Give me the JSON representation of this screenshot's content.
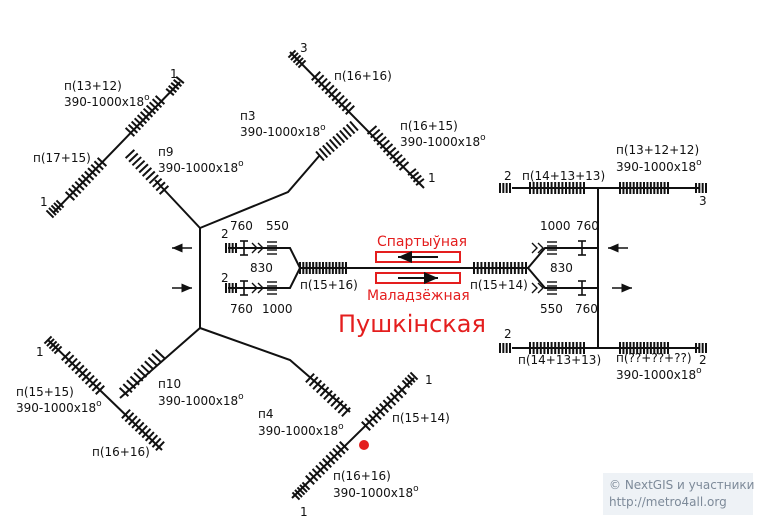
{
  "station": {
    "name": "Пушкінская",
    "platform_top": "Спартыўная",
    "platform_bottom": "Маладзёжная"
  },
  "credit": {
    "line1": "© NextGIS и участники",
    "line2": "http://metro4all.org"
  },
  "exits": {
    "nw": {
      "name": "п9",
      "param": "390-1000x18",
      "deg": "o",
      "a1_name": "п(13+12)",
      "a1_param": "390-1000x18",
      "a1_deg": "o",
      "a2_name": "п(17+15)",
      "end1": "1",
      "end2": "1"
    },
    "n": {
      "name": "п3",
      "param": "390-1000x18",
      "deg": "o",
      "a1_name": "п(16+16)",
      "a2_name": "п(16+15)",
      "a2_param": "390-1000x18",
      "a2_deg": "o",
      "end1": "3",
      "end2": "1"
    },
    "sw": {
      "name": "п10",
      "param": "390-1000x18",
      "deg": "o",
      "a1_name": "п(15+15)",
      "a1_param": "390-1000x18",
      "a1_deg": "o",
      "a2_name": "п(16+16)",
      "end1": "1"
    },
    "s": {
      "name": "п4",
      "param": "390-1000x18",
      "deg": "o",
      "a1_name": "п(15+14)",
      "a2_name": "п(16+16)",
      "a2_param": "390-1000x18",
      "a2_deg": "o",
      "end1": "1",
      "end2": "1"
    },
    "ne": {
      "name": "п(14+13+13)",
      "a1_name": "п(13+12+12)",
      "a1_param": "390-1000x18",
      "a1_deg": "o",
      "end1": "2",
      "end2": "3"
    },
    "se": {
      "name": "п(14+13+13)",
      "a1_name": "п(??+??+??)",
      "a1_param": "390-1000x18",
      "a1_deg": "o",
      "end1": "2",
      "end2": "2"
    }
  },
  "west_vestibule": {
    "stair": "п(15+16)",
    "top_num": "2",
    "top_w1": "760",
    "top_w2": "550",
    "mid": "830",
    "bot_num": "2",
    "bot_w1": "760",
    "bot_w2": "1000"
  },
  "east_vestibule": {
    "stair": "п(15+14)",
    "top_w1": "1000",
    "top_w2": "760",
    "mid": "830",
    "bot_w1": "550",
    "bot_w2": "760"
  },
  "icons": [
    "arrow-left-icon",
    "arrow-right-icon",
    "stairs-icon",
    "turnstile-icon",
    "entrance-dot-icon"
  ],
  "colors": {
    "accent": "#e41e1e",
    "line": "#111111",
    "credit_bg": "#eef2f6",
    "credit_text": "#7d8a99"
  }
}
